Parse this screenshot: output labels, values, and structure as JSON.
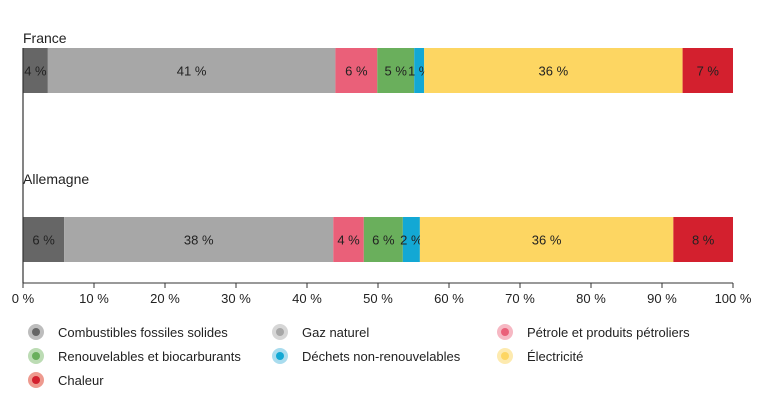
{
  "chart_data": {
    "type": "bar",
    "orientation": "horizontal-stacked",
    "categories": [
      "France",
      "Allemagne"
    ],
    "series": [
      {
        "name": "Combustibles fossiles solides",
        "values": [
          3.5,
          5.8
        ],
        "labels": [
          "4 %",
          "6 %"
        ],
        "color": "#666666"
      },
      {
        "name": "Gaz naturel",
        "values": [
          40.5,
          37.9
        ],
        "labels": [
          "41 %",
          "38 %"
        ],
        "color": "#a7a7a7"
      },
      {
        "name": "Pétrole et produits pétroliers",
        "values": [
          5.9,
          4.3
        ],
        "labels": [
          "6 %",
          "4 %"
        ],
        "color": "#ea6079"
      },
      {
        "name": "Renouvelables et biocarburants",
        "values": [
          5.2,
          5.5
        ],
        "labels": [
          "5 %",
          "6 %"
        ],
        "color": "#6aaf5c"
      },
      {
        "name": "Déchets non-renouvelables",
        "values": [
          1.4,
          2.4
        ],
        "labels": [
          "1 %",
          "2 %"
        ],
        "color": "#13a8d4"
      },
      {
        "name": "Électricité",
        "values": [
          36.4,
          35.7
        ],
        "labels": [
          "36 %",
          "36 %"
        ],
        "color": "#fdd662"
      },
      {
        "name": "Chaleur",
        "values": [
          7.1,
          8.4
        ],
        "labels": [
          "7 %",
          "8 %"
        ],
        "color": "#d3202e"
      }
    ],
    "xlim": [
      0,
      100
    ],
    "xticks": [
      0,
      10,
      20,
      30,
      40,
      50,
      60,
      70,
      80,
      90,
      100
    ],
    "xtick_labels": [
      "0 %",
      "10 %",
      "20 %",
      "30 %",
      "40 %",
      "50 %",
      "60 %",
      "70 %",
      "80 %",
      "90 %",
      "100 %"
    ],
    "grid": false,
    "legend_position": "bottom"
  },
  "legend": {
    "items": [
      {
        "label": "Combustibles fossiles solides",
        "color": "#666666",
        "ring": "#bdbdbd"
      },
      {
        "label": "Gaz naturel",
        "color": "#a7a7a7",
        "ring": "#d6d6d6"
      },
      {
        "label": "Pétrole et produits pétroliers",
        "color": "#ea6079",
        "ring": "#f6b8c3"
      },
      {
        "label": "Renouvelables et biocarburants",
        "color": "#6aaf5c",
        "ring": "#bcdcb4"
      },
      {
        "label": "Déchets non-renouvelables",
        "color": "#13a8d4",
        "ring": "#a9dcee"
      },
      {
        "label": "Électricité",
        "color": "#fdd662",
        "ring": "#fdeaaf"
      },
      {
        "label": "Chaleur",
        "color": "#d3202e",
        "ring": "#ee9a8f"
      }
    ]
  }
}
